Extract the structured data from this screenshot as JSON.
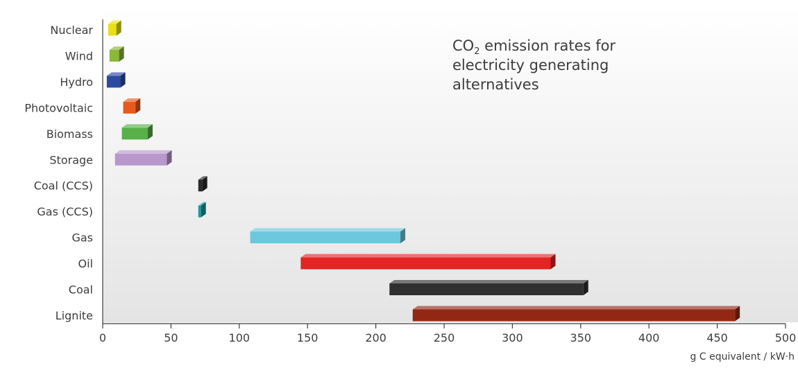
{
  "chart_data": {
    "type": "bar",
    "orientation": "horizontal-floating-range",
    "title_lines": [
      "CO",
      "2",
      " emission rates for",
      "electricity generating",
      "alternatives"
    ],
    "xlabel": "g C equivalent / kW·h",
    "ylabel": "",
    "xlim": [
      0,
      500
    ],
    "x_ticks": [
      0,
      50,
      100,
      150,
      200,
      250,
      300,
      350,
      400,
      450,
      500
    ],
    "x_tick_labels": [
      "0",
      "50",
      "100",
      "150",
      "200",
      "250",
      "300",
      "350",
      "400",
      "450",
      "500"
    ],
    "grid": false,
    "categories": [
      "Nuclear",
      "Wind",
      "Hydro",
      "Photovoltaic",
      "Biomass",
      "Storage",
      "Coal (CCS)",
      "Gas (CCS)",
      "Gas",
      "Oil",
      "Coal",
      "Lignite"
    ],
    "ranges": [
      [
        4,
        10
      ],
      [
        5,
        12
      ],
      [
        3,
        13
      ],
      [
        15,
        24
      ],
      [
        14,
        33
      ],
      [
        9,
        47
      ],
      [
        70,
        73
      ],
      [
        70,
        72
      ],
      [
        108,
        218
      ],
      [
        145,
        328
      ],
      [
        210,
        352
      ],
      [
        227,
        463
      ]
    ],
    "colors": [
      "#e8e010",
      "#8cb83a",
      "#2c4aa0",
      "#e85a1c",
      "#58b048",
      "#b898cc",
      "#2a2a2a",
      "#1a9aa0",
      "#6cc8dc",
      "#e42424",
      "#303030",
      "#922814"
    ]
  }
}
